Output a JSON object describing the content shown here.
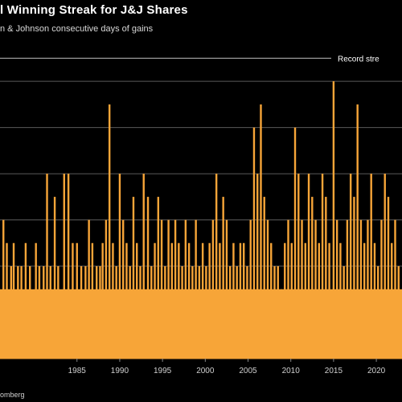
{
  "header": {
    "title": "l Winning Streak for J&J Shares",
    "subtitle": "n & Johnson consecutive days of gains"
  },
  "source": "omberg",
  "chart_data": {
    "type": "bar",
    "title": "l Winning Streak for J&J Shares",
    "subtitle": "n & Johnson consecutive days of gains",
    "xlabel": "",
    "ylabel": "",
    "x_range": [
      1976,
      2023
    ],
    "ylim": [
      0,
      13.5
    ],
    "grid": true,
    "x_ticks": [
      {
        "value": 1985,
        "label": "1985"
      },
      {
        "value": 1990,
        "label": "1990"
      },
      {
        "value": 1995,
        "label": "1995"
      },
      {
        "value": 2000,
        "label": "2000"
      },
      {
        "value": 2005,
        "label": "2005"
      },
      {
        "value": 2010,
        "label": "2010"
      },
      {
        "value": 2015,
        "label": "2015"
      },
      {
        "value": 2020,
        "label": "2020"
      }
    ],
    "y_gridlines": [
      2,
      4,
      6,
      8,
      10,
      12
    ],
    "reference_line": {
      "value": 13,
      "label": "Record stre"
    },
    "bar_color": "#f7a538",
    "streaks": [
      {
        "year": 1976.4,
        "days": 6
      },
      {
        "year": 1976.8,
        "days": 5
      },
      {
        "year": 1977.3,
        "days": 4
      },
      {
        "year": 1977.6,
        "days": 5
      },
      {
        "year": 1978.1,
        "days": 4
      },
      {
        "year": 1978.5,
        "days": 4
      },
      {
        "year": 1979.0,
        "days": 5
      },
      {
        "year": 1979.5,
        "days": 4
      },
      {
        "year": 1980.2,
        "days": 5
      },
      {
        "year": 1980.6,
        "days": 4
      },
      {
        "year": 1981.1,
        "days": 4
      },
      {
        "year": 1981.5,
        "days": 8
      },
      {
        "year": 1981.9,
        "days": 4
      },
      {
        "year": 1982.4,
        "days": 7
      },
      {
        "year": 1982.8,
        "days": 4
      },
      {
        "year": 1983.5,
        "days": 8
      },
      {
        "year": 1984.0,
        "days": 8
      },
      {
        "year": 1984.5,
        "days": 5
      },
      {
        "year": 1985.0,
        "days": 5
      },
      {
        "year": 1985.5,
        "days": 4
      },
      {
        "year": 1986.0,
        "days": 4
      },
      {
        "year": 1986.4,
        "days": 6
      },
      {
        "year": 1986.8,
        "days": 5
      },
      {
        "year": 1987.3,
        "days": 4
      },
      {
        "year": 1987.7,
        "days": 4
      },
      {
        "year": 1988.0,
        "days": 5
      },
      {
        "year": 1988.4,
        "days": 6
      },
      {
        "year": 1988.8,
        "days": 11
      },
      {
        "year": 1989.2,
        "days": 5
      },
      {
        "year": 1989.6,
        "days": 4
      },
      {
        "year": 1990.0,
        "days": 8
      },
      {
        "year": 1990.4,
        "days": 6
      },
      {
        "year": 1990.8,
        "days": 5
      },
      {
        "year": 1991.2,
        "days": 4
      },
      {
        "year": 1991.6,
        "days": 7
      },
      {
        "year": 1992.0,
        "days": 5
      },
      {
        "year": 1992.4,
        "days": 4
      },
      {
        "year": 1992.8,
        "days": 8
      },
      {
        "year": 1993.3,
        "days": 7
      },
      {
        "year": 1993.7,
        "days": 4
      },
      {
        "year": 1994.1,
        "days": 5
      },
      {
        "year": 1994.5,
        "days": 7
      },
      {
        "year": 1994.9,
        "days": 6
      },
      {
        "year": 1995.3,
        "days": 4
      },
      {
        "year": 1995.7,
        "days": 6
      },
      {
        "year": 1996.1,
        "days": 5
      },
      {
        "year": 1996.5,
        "days": 6
      },
      {
        "year": 1996.9,
        "days": 5
      },
      {
        "year": 1997.3,
        "days": 4
      },
      {
        "year": 1997.7,
        "days": 6
      },
      {
        "year": 1998.1,
        "days": 5
      },
      {
        "year": 1998.5,
        "days": 4
      },
      {
        "year": 1998.9,
        "days": 6
      },
      {
        "year": 1999.3,
        "days": 4
      },
      {
        "year": 1999.7,
        "days": 5
      },
      {
        "year": 2000.1,
        "days": 4
      },
      {
        "year": 2000.5,
        "days": 5
      },
      {
        "year": 2000.9,
        "days": 6
      },
      {
        "year": 2001.3,
        "days": 8
      },
      {
        "year": 2001.7,
        "days": 5
      },
      {
        "year": 2002.1,
        "days": 7
      },
      {
        "year": 2002.5,
        "days": 6
      },
      {
        "year": 2002.9,
        "days": 4
      },
      {
        "year": 2003.3,
        "days": 5
      },
      {
        "year": 2003.7,
        "days": 4
      },
      {
        "year": 2004.1,
        "days": 5
      },
      {
        "year": 2004.5,
        "days": 5
      },
      {
        "year": 2004.9,
        "days": 4
      },
      {
        "year": 2005.3,
        "days": 6
      },
      {
        "year": 2005.7,
        "days": 10
      },
      {
        "year": 2006.1,
        "days": 8
      },
      {
        "year": 2006.5,
        "days": 11
      },
      {
        "year": 2006.9,
        "days": 7
      },
      {
        "year": 2007.3,
        "days": 6
      },
      {
        "year": 2007.7,
        "days": 5
      },
      {
        "year": 2008.1,
        "days": 4
      },
      {
        "year": 2008.5,
        "days": 4
      },
      {
        "year": 2008.9,
        "days": 3
      },
      {
        "year": 2009.3,
        "days": 5
      },
      {
        "year": 2009.7,
        "days": 6
      },
      {
        "year": 2010.1,
        "days": 5
      },
      {
        "year": 2010.5,
        "days": 10
      },
      {
        "year": 2010.9,
        "days": 8
      },
      {
        "year": 2011.3,
        "days": 6
      },
      {
        "year": 2011.7,
        "days": 5
      },
      {
        "year": 2012.1,
        "days": 8
      },
      {
        "year": 2012.5,
        "days": 7
      },
      {
        "year": 2012.9,
        "days": 6
      },
      {
        "year": 2013.3,
        "days": 5
      },
      {
        "year": 2013.7,
        "days": 8
      },
      {
        "year": 2014.1,
        "days": 7
      },
      {
        "year": 2014.5,
        "days": 5
      },
      {
        "year": 2015.0,
        "days": 12
      },
      {
        "year": 2015.4,
        "days": 6
      },
      {
        "year": 2015.8,
        "days": 5
      },
      {
        "year": 2016.2,
        "days": 4
      },
      {
        "year": 2016.6,
        "days": 6
      },
      {
        "year": 2017.0,
        "days": 8
      },
      {
        "year": 2017.4,
        "days": 7
      },
      {
        "year": 2017.8,
        "days": 11
      },
      {
        "year": 2018.2,
        "days": 6
      },
      {
        "year": 2018.6,
        "days": 5
      },
      {
        "year": 2019.0,
        "days": 6
      },
      {
        "year": 2019.4,
        "days": 8
      },
      {
        "year": 2019.8,
        "days": 5
      },
      {
        "year": 2020.2,
        "days": 4
      },
      {
        "year": 2020.6,
        "days": 6
      },
      {
        "year": 2021.0,
        "days": 8
      },
      {
        "year": 2021.4,
        "days": 7
      },
      {
        "year": 2021.8,
        "days": 5
      },
      {
        "year": 2022.2,
        "days": 6
      },
      {
        "year": 2022.6,
        "days": 4
      }
    ]
  }
}
